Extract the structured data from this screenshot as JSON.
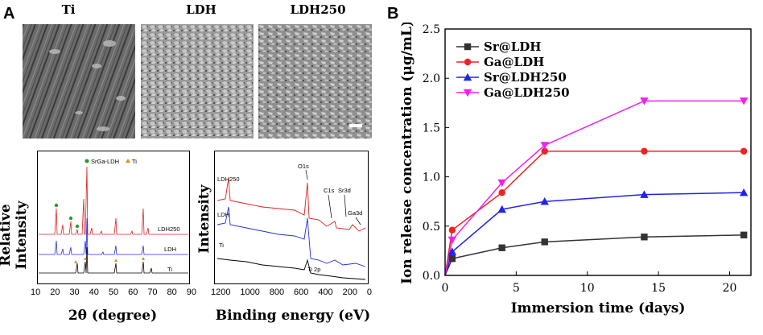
{
  "panel_a": {
    "letter": "A",
    "sem_titles": [
      "Ti",
      "LDH",
      "LDH250"
    ],
    "xrd": {
      "ylabel": "Relative Intensity",
      "xlabel": "2θ (degree)",
      "ticks": [
        "10",
        "20",
        "30",
        "40",
        "50",
        "60",
        "70",
        "80",
        "90"
      ],
      "legend_a": "SrGa-LDH",
      "legend_b": "Ti",
      "traces": [
        "LDH250",
        "LDH",
        "Ti"
      ],
      "colors": {
        "LDH250": "#e02020",
        "LDH": "#2030e0",
        "Ti": "#000000"
      }
    },
    "xps": {
      "ylabel": "Intensity",
      "xlabel": "Binding energy (eV)",
      "ticks": [
        "1200",
        "1000",
        "800",
        "600",
        "400",
        "200",
        "0"
      ],
      "traces": [
        "LDH250",
        "LDH",
        "Ti"
      ],
      "peaks": [
        "O1s",
        "C1s",
        "Sr3d",
        "Ga3d",
        "Ti 2p"
      ]
    }
  },
  "panel_b": {
    "letter": "B"
  },
  "chart_data": {
    "type": "line",
    "title": "",
    "xlabel": "Immersion time (days)",
    "ylabel": "Ion release concentration (μg/mL)",
    "xlim": [
      0,
      21.5
    ],
    "ylim": [
      0,
      2.5
    ],
    "xticks": [
      0,
      5,
      10,
      15,
      20
    ],
    "yticks": [
      0.0,
      0.5,
      1.0,
      1.5,
      2.0,
      2.5
    ],
    "x": [
      0,
      0.5,
      4,
      7,
      14,
      21
    ],
    "legend_position": "top-left",
    "series": [
      {
        "name": "Sr@LDH",
        "color": "#333333",
        "marker": "square",
        "values": [
          0,
          0.17,
          0.28,
          0.34,
          0.39,
          0.41
        ]
      },
      {
        "name": "Ga@LDH",
        "color": "#ee2222",
        "marker": "circle",
        "values": [
          0,
          0.46,
          0.84,
          1.26,
          1.26,
          1.26
        ]
      },
      {
        "name": "Sr@LDH250",
        "color": "#2222ee",
        "marker": "triangle-up",
        "values": [
          0,
          0.24,
          0.67,
          0.75,
          0.82,
          0.84
        ]
      },
      {
        "name": "Ga@LDH250",
        "color": "#ee22ee",
        "marker": "triangle-down",
        "values": [
          0,
          0.36,
          0.94,
          1.32,
          1.77,
          1.77
        ]
      }
    ]
  }
}
